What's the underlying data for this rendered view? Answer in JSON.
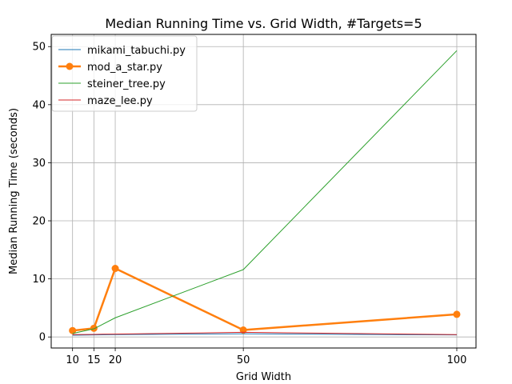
{
  "chart_data": {
    "type": "line",
    "title": "Median Running Time vs. Grid Width, #Targets=5",
    "xlabel": "Grid Width",
    "ylabel": "Median Running Time (seconds)",
    "x": [
      10,
      15,
      20,
      50,
      100
    ],
    "x_ticks": [
      10,
      15,
      20,
      50,
      100
    ],
    "y_ticks": [
      0,
      10,
      20,
      30,
      40,
      50
    ],
    "xlim": [
      5,
      104.5
    ],
    "ylim": [
      -1.9,
      52.1
    ],
    "grid": true,
    "legend_position": "upper-left",
    "series": [
      {
        "name": "mikami_tabuchi.py",
        "color": "#1f77b4",
        "width": 1,
        "marker": false,
        "values": [
          0.3,
          0.35,
          0.4,
          0.55,
          0.35
        ]
      },
      {
        "name": "mod_a_star.py",
        "color": "#ff7f0e",
        "width": 2.5,
        "marker": true,
        "values": [
          1.1,
          1.5,
          11.8,
          1.2,
          3.9
        ]
      },
      {
        "name": "steiner_tree.py",
        "color": "#2ca02c",
        "width": 1,
        "marker": false,
        "values": [
          0.6,
          1.4,
          3.3,
          11.6,
          49.3
        ]
      },
      {
        "name": "maze_lee.py",
        "color": "#d62728",
        "width": 1,
        "marker": false,
        "values": [
          0.4,
          0.45,
          0.5,
          0.8,
          0.4
        ]
      }
    ]
  }
}
